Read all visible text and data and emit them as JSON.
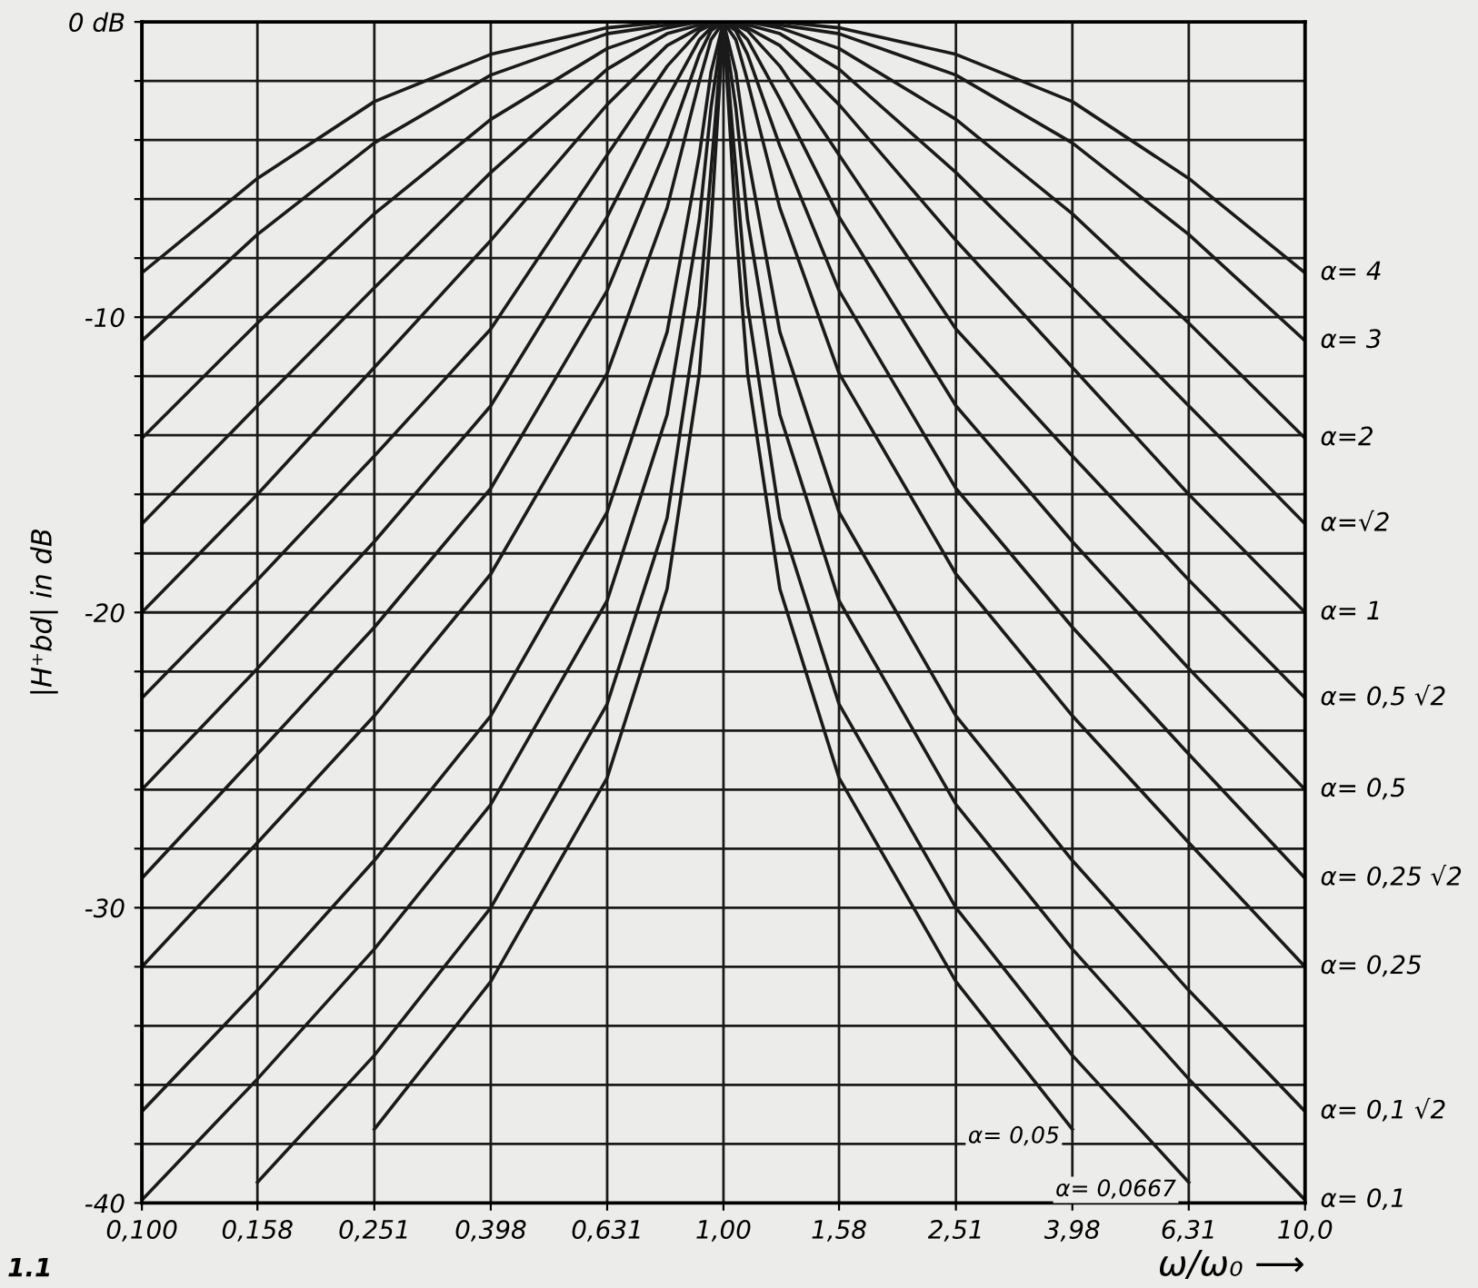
{
  "chart_data": {
    "type": "line",
    "xlabel": "ω/ω₀ ⟶",
    "ylabel": "|H⁺bd| in dB",
    "log": "x",
    "grid": true,
    "legend": false,
    "marker": "none",
    "line_style": "solid",
    "x": [
      0.1,
      0.158,
      0.251,
      0.398,
      0.631,
      0.8,
      0.909,
      0.952,
      1,
      1.05,
      1.1,
      1.25,
      1.58,
      2.51,
      3.98,
      6.31,
      10
    ],
    "xlim": [
      0.1,
      10
    ],
    "xticks": [
      {
        "value": 0.1,
        "label": "0,100"
      },
      {
        "value": 0.158,
        "label": "0,158"
      },
      {
        "value": 0.251,
        "label": "0,251"
      },
      {
        "value": 0.398,
        "label": "0,398"
      },
      {
        "value": 0.631,
        "label": "0,631"
      },
      {
        "value": 1,
        "label": "1,00"
      },
      {
        "value": 1.58,
        "label": "1,58"
      },
      {
        "value": 2.51,
        "label": "2,51"
      },
      {
        "value": 3.98,
        "label": "3,98"
      },
      {
        "value": 6.31,
        "label": "6,31"
      },
      {
        "value": 10,
        "label": "10,0"
      }
    ],
    "ylim": [
      -40,
      0
    ],
    "yticks": [
      {
        "value": 0,
        "label": "0 dB"
      },
      {
        "value": -2,
        "label": null
      },
      {
        "value": -4,
        "label": null
      },
      {
        "value": -6,
        "label": null
      },
      {
        "value": -8,
        "label": null
      },
      -10,
      {
        "value": -12,
        "label": null
      },
      {
        "value": -14,
        "label": null
      },
      {
        "value": -16,
        "label": null
      },
      {
        "value": -18,
        "label": null
      },
      -20,
      {
        "value": -22,
        "label": null
      },
      {
        "value": -24,
        "label": null
      },
      {
        "value": -26,
        "label": null
      },
      {
        "value": -28,
        "label": null
      },
      -30,
      {
        "value": -32,
        "label": null
      },
      {
        "value": -34,
        "label": null
      },
      {
        "value": -36,
        "label": null
      },
      {
        "value": -38,
        "label": null
      },
      -40
    ],
    "series": [
      {
        "name": "α= 4",
        "color": "#1a1a1a",
        "values": [
          -8.5,
          -5.3,
          -2.7,
          -1.1,
          -0.2,
          0,
          0,
          0,
          0,
          0,
          0,
          0,
          -0.2,
          -1.1,
          -2.7,
          -5.3,
          -8.5
        ]
      },
      {
        "name": "α= 3",
        "color": "#1a1a1a",
        "values": [
          -10.8,
          -7.2,
          -4.1,
          -1.8,
          -0.4,
          -0.1,
          0,
          0,
          0,
          0,
          0,
          -0.1,
          -0.4,
          -1.8,
          -4.1,
          -7.2,
          -10.8
        ]
      },
      {
        "name": "α=2",
        "color": "#1a1a1a",
        "values": [
          -14.1,
          -10.2,
          -6.5,
          -3.3,
          -0.9,
          -0.2,
          0,
          0,
          0,
          0,
          0,
          -0.2,
          -0.9,
          -3.3,
          -6.5,
          -10.2,
          -14.1
        ]
      },
      {
        "name": "α=√2",
        "color": "#1a1a1a",
        "values": [
          -17.0,
          -13.0,
          -9.0,
          -5.1,
          -1.6,
          -0.4,
          -0.1,
          0,
          0,
          0,
          -0.1,
          -0.4,
          -1.6,
          -5.1,
          -9.0,
          -13.0,
          -17.0
        ]
      },
      {
        "name": "α= 1",
        "color": "#1a1a1a",
        "values": [
          -20.0,
          -16.0,
          -11.7,
          -7.4,
          -2.8,
          -0.8,
          -0.2,
          0,
          0,
          0,
          -0.2,
          -0.8,
          -2.8,
          -7.4,
          -11.7,
          -16.0,
          -20.0
        ]
      },
      {
        "name": "α= 0,5 √2",
        "color": "#1a1a1a",
        "values": [
          -22.9,
          -18.9,
          -14.7,
          -10.4,
          -4.5,
          -1.5,
          -0.3,
          -0.1,
          0,
          -0.1,
          -0.3,
          -1.5,
          -4.5,
          -10.4,
          -14.7,
          -18.9,
          -22.9
        ]
      },
      {
        "name": "α= 0,5",
        "color": "#1a1a1a",
        "values": [
          -26.0,
          -21.9,
          -17.6,
          -13.0,
          -6.6,
          -2.6,
          -0.6,
          -0.2,
          0,
          -0.2,
          -0.6,
          -2.6,
          -6.6,
          -13.0,
          -17.6,
          -21.9,
          -26.0
        ]
      },
      {
        "name": "α= 0,25 √2",
        "color": "#1a1a1a",
        "values": [
          -29.0,
          -24.8,
          -20.5,
          -15.8,
          -9.1,
          -4.2,
          -1.1,
          -0.3,
          0,
          -0.3,
          -1.1,
          -4.2,
          -9.1,
          -15.8,
          -20.5,
          -24.8,
          -29.0
        ]
      },
      {
        "name": "α= 0,25",
        "color": "#1a1a1a",
        "values": [
          -32.0,
          -27.8,
          -23.5,
          -18.7,
          -11.9,
          -6.3,
          -2.0,
          -0.6,
          0,
          -0.6,
          -2.0,
          -6.3,
          -11.9,
          -18.7,
          -23.5,
          -27.8,
          -32.0
        ]
      },
      {
        "name": "α= 0,1 √2",
        "color": "#1a1a1a",
        "values": [
          -36.9,
          -32.8,
          -28.4,
          -23.5,
          -16.6,
          -10.5,
          -4.5,
          -1.7,
          0,
          -1.7,
          -4.5,
          -10.5,
          -16.6,
          -23.5,
          -28.4,
          -32.8,
          -36.9
        ]
      },
      {
        "name": "α= 0,1",
        "color": "#1a1a1a",
        "values": [
          -39.9,
          -35.8,
          -31.4,
          -26.5,
          -19.6,
          -13.3,
          -6.7,
          -2.9,
          0,
          -2.9,
          -6.7,
          -13.3,
          -19.6,
          -26.5,
          -31.4,
          -35.8,
          -39.9
        ]
      },
      {
        "name": "α= 0,0667",
        "color": "#1a1a1a",
        "values": [
          null,
          -39.3,
          -35.0,
          -30.0,
          -23.1,
          -16.8,
          -9.6,
          -5.0,
          0,
          -5.0,
          -9.6,
          -16.8,
          -23.1,
          -30.0,
          -35.0,
          -39.3,
          null
        ]
      },
      {
        "name": "α= 0,05",
        "color": "#1a1a1a",
        "values": [
          null,
          null,
          -37.5,
          -32.5,
          -25.6,
          -19.2,
          -11.9,
          -6.9,
          0,
          -6.9,
          -11.9,
          -19.2,
          -25.6,
          -32.5,
          -37.5,
          null,
          null
        ]
      }
    ],
    "annotations": [
      "1.1"
    ]
  }
}
